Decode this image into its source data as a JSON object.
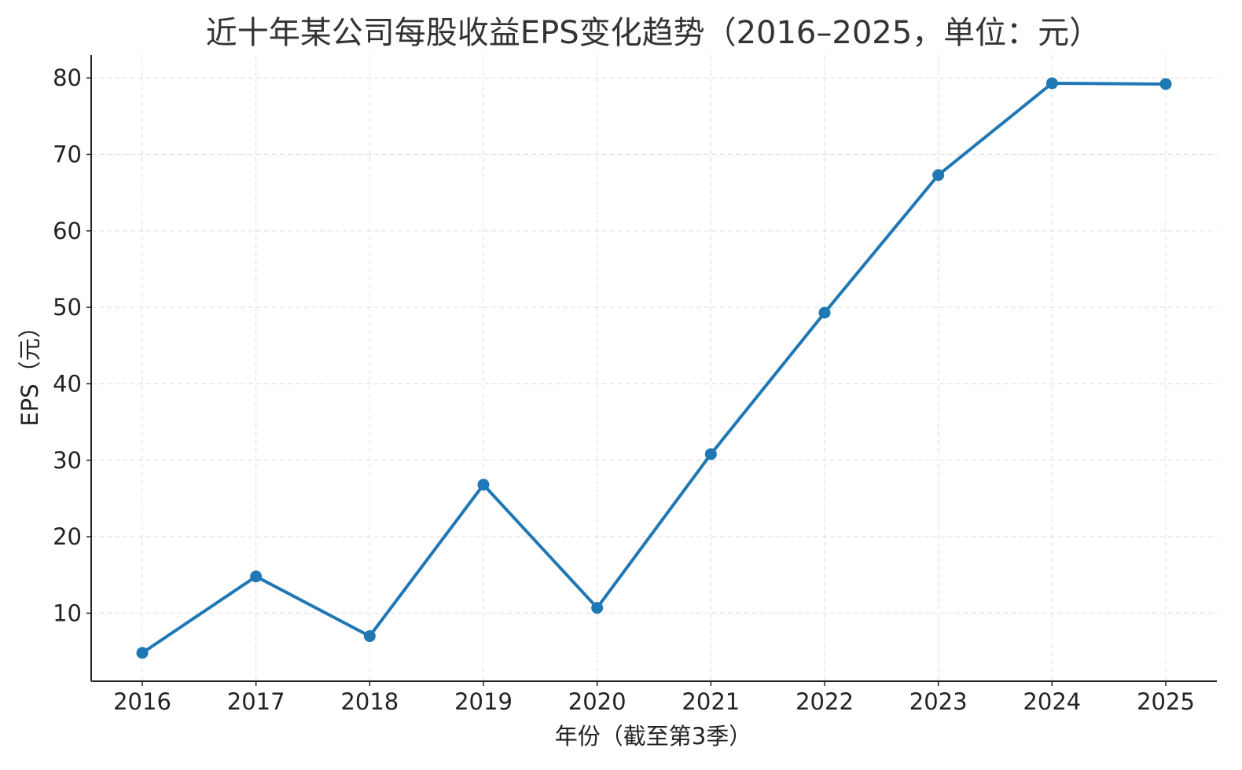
{
  "chart_data": {
    "type": "line",
    "title": "近十年某公司每股收益EPS变化趋势（2016–2025，单位：元）",
    "xlabel": "年份（截至第3季）",
    "ylabel": "EPS（元）",
    "x": [
      "2016",
      "2017",
      "2018",
      "2019",
      "2020",
      "2021",
      "2022",
      "2023",
      "2024",
      "2025"
    ],
    "series": [
      {
        "values": [
          4.8,
          14.8,
          7.0,
          26.8,
          10.7,
          30.8,
          49.3,
          67.3,
          79.3,
          79.2
        ],
        "color": "#1f77b4"
      }
    ],
    "yticks": [
      "10",
      "20",
      "30",
      "40",
      "50",
      "60",
      "70",
      "80"
    ],
    "ylim": [
      1.1,
      83.0
    ],
    "grid": true,
    "marker": "circle"
  }
}
